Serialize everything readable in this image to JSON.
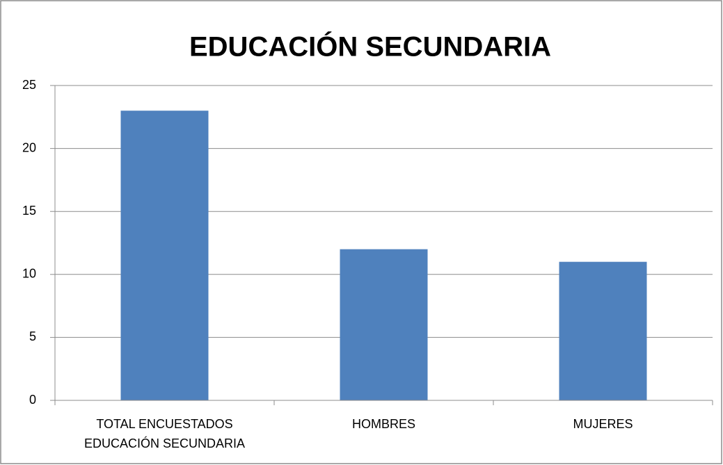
{
  "chart_data": {
    "type": "bar",
    "title": "EDUCACIÓN SECUNDARIA",
    "categories": [
      "TOTAL ENCUESTADOS EDUCACIÓN SECUNDARIA",
      "HOMBRES",
      "MUJERES"
    ],
    "values": [
      23,
      12,
      11
    ],
    "color": "#4f81bd",
    "ylim": [
      0,
      25
    ],
    "yticks": [
      0,
      5,
      10,
      15,
      20,
      25
    ],
    "grid": true
  }
}
